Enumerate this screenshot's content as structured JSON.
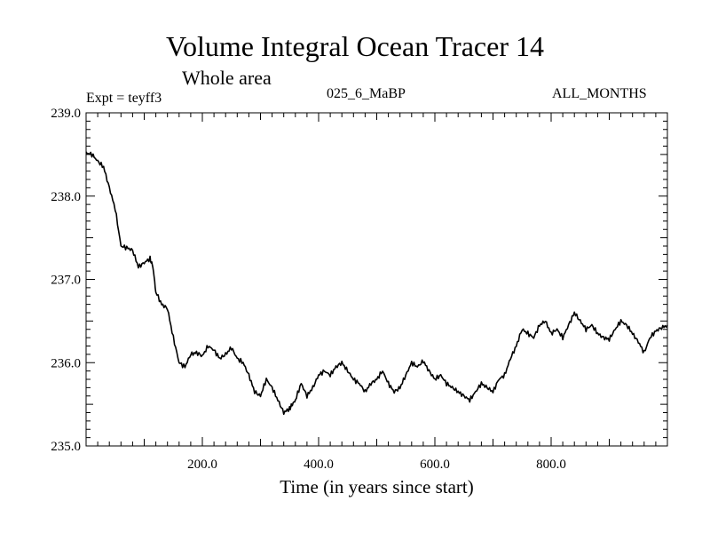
{
  "chart_data": {
    "type": "line",
    "title": "Volume Integral Ocean Tracer 14",
    "subtitle": "Whole area",
    "info_left": "Expt = teyff3",
    "info_center": "025_6_MaBP",
    "info_right": "ALL_MONTHS",
    "xlabel": "Time (in years since start)",
    "ylabel": "",
    "xlim": [
      0,
      1000
    ],
    "ylim": [
      235.0,
      239.0
    ],
    "x_ticks": [
      200,
      400,
      600,
      800
    ],
    "x_tick_labels": [
      "200.0",
      "400.0",
      "600.0",
      "800.0"
    ],
    "y_ticks": [
      235,
      236,
      237,
      238,
      239
    ],
    "y_tick_labels": [
      "235.0",
      "236.0",
      "237.0",
      "238.0",
      "239.0"
    ],
    "grid": false,
    "series": [
      {
        "name": "Tracer 14",
        "color": "#000000",
        "x": [
          0,
          10,
          20,
          30,
          40,
          50,
          60,
          70,
          80,
          90,
          100,
          110,
          115,
          120,
          130,
          140,
          150,
          160,
          170,
          180,
          190,
          200,
          210,
          220,
          230,
          240,
          250,
          260,
          270,
          280,
          290,
          300,
          310,
          320,
          330,
          340,
          350,
          355,
          360,
          370,
          380,
          390,
          400,
          410,
          420,
          430,
          440,
          450,
          460,
          470,
          480,
          490,
          500,
          510,
          520,
          530,
          540,
          550,
          560,
          570,
          580,
          590,
          600,
          610,
          620,
          630,
          640,
          650,
          660,
          670,
          680,
          690,
          700,
          710,
          720,
          730,
          740,
          750,
          760,
          770,
          780,
          790,
          800,
          810,
          820,
          830,
          840,
          850,
          860,
          870,
          880,
          890,
          900,
          910,
          920,
          930,
          940,
          950,
          960,
          970,
          980,
          990,
          1000
        ],
        "values": [
          238.52,
          238.5,
          238.42,
          238.35,
          238.1,
          237.85,
          237.4,
          237.38,
          237.35,
          237.15,
          237.2,
          237.25,
          237.15,
          236.85,
          236.7,
          236.65,
          236.3,
          236.0,
          235.95,
          236.1,
          236.12,
          236.08,
          236.2,
          236.15,
          236.05,
          236.1,
          236.18,
          236.05,
          236.0,
          235.85,
          235.65,
          235.6,
          235.8,
          235.7,
          235.55,
          235.4,
          235.45,
          235.5,
          235.55,
          235.75,
          235.6,
          235.7,
          235.85,
          235.9,
          235.85,
          235.95,
          236.0,
          235.9,
          235.8,
          235.75,
          235.65,
          235.75,
          235.8,
          235.9,
          235.75,
          235.65,
          235.7,
          235.85,
          236.0,
          235.95,
          236.02,
          235.9,
          235.8,
          235.85,
          235.75,
          235.7,
          235.65,
          235.6,
          235.55,
          235.65,
          235.75,
          235.7,
          235.65,
          235.8,
          235.85,
          236.05,
          236.2,
          236.4,
          236.35,
          236.3,
          236.45,
          236.5,
          236.35,
          236.4,
          236.3,
          236.45,
          236.6,
          236.5,
          236.4,
          236.45,
          236.35,
          236.3,
          236.28,
          236.4,
          236.5,
          236.45,
          236.35,
          236.25,
          236.12,
          236.3,
          236.38,
          236.42,
          236.45
        ]
      }
    ]
  }
}
